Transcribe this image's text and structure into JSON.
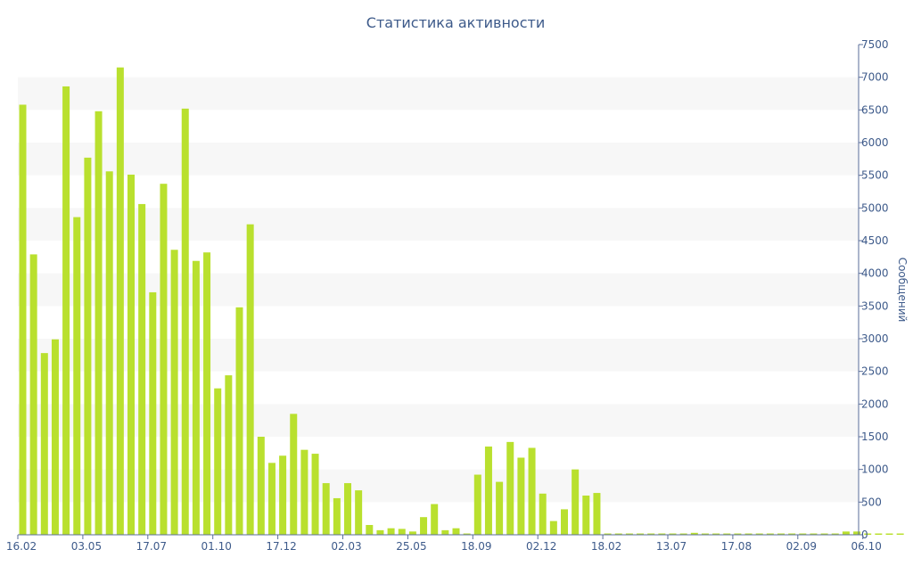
{
  "chart_data": {
    "type": "bar",
    "title": "Статистика активности",
    "xlabel": "",
    "ylabel": "Сообщений",
    "ylim": [
      0,
      7500
    ],
    "y_axis_side": "right",
    "yticks": [
      0,
      500,
      1000,
      1500,
      2000,
      2500,
      3000,
      3500,
      4000,
      4500,
      5000,
      5500,
      6000,
      6500,
      7000,
      7500
    ],
    "grid": "alternating horizontal bands",
    "legend": "none",
    "bar_color": "#b9e02e",
    "band_color": "#f7f7f7",
    "text_color": "#3d5a8a",
    "axis_color": "#5a6e9a",
    "xtick_labels": [
      {
        "label": "16.02",
        "index": 0
      },
      {
        "label": "03.05",
        "index": 6
      },
      {
        "label": "17.07",
        "index": 12
      },
      {
        "label": "01.10",
        "index": 18
      },
      {
        "label": "17.12",
        "index": 24
      },
      {
        "label": "02.03",
        "index": 30
      },
      {
        "label": "25.05",
        "index": 36
      },
      {
        "label": "18.09",
        "index": 42
      },
      {
        "label": "02.12",
        "index": 48
      },
      {
        "label": "18.02",
        "index": 54
      },
      {
        "label": "13.07",
        "index": 60
      },
      {
        "label": "17.08",
        "index": 66
      },
      {
        "label": "02.09",
        "index": 72
      },
      {
        "label": "06.10",
        "index": 78
      }
    ],
    "values": [
      6580,
      4290,
      2780,
      2990,
      6860,
      4860,
      5770,
      6480,
      5560,
      7150,
      5510,
      5060,
      3710,
      5370,
      4360,
      6520,
      4190,
      4320,
      2240,
      2440,
      3480,
      4750,
      1500,
      1100,
      1210,
      1850,
      1300,
      1240,
      790,
      560,
      790,
      680,
      150,
      70,
      100,
      90,
      50,
      270,
      470,
      70,
      100,
      20,
      920,
      1350,
      810,
      1420,
      1180,
      1330,
      630,
      210,
      390,
      1000,
      600,
      640,
      20,
      20,
      20,
      20,
      20,
      20,
      20,
      20,
      30,
      20,
      20,
      20,
      20,
      20,
      20,
      20,
      20,
      20,
      20,
      20,
      20,
      20,
      50,
      50,
      20,
      20,
      20,
      20
    ]
  }
}
